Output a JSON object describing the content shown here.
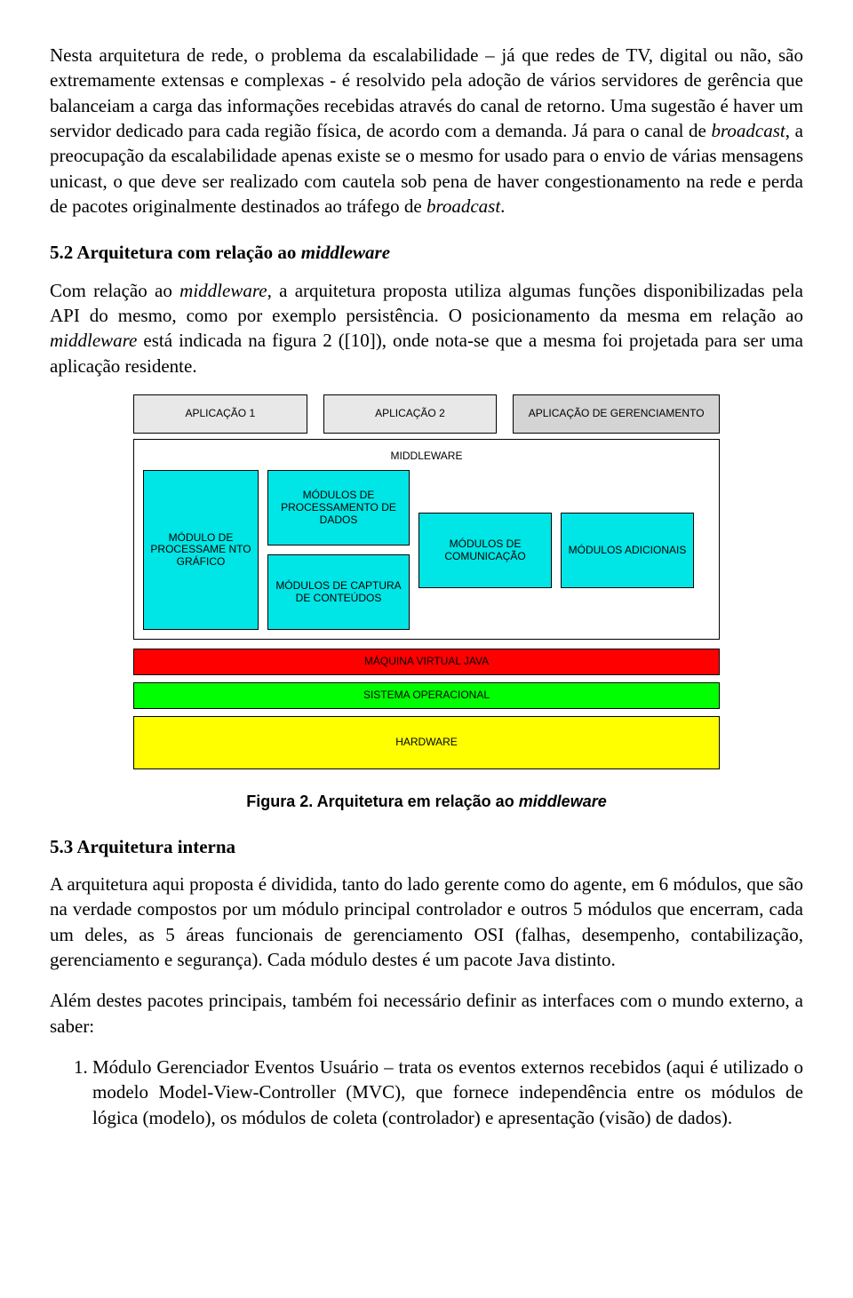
{
  "para1_a": "Nesta arquitetura de rede, o problema da escalabilidade – já que redes de TV, digital ou não, são extremamente extensas e complexas - é resolvido pela adoção de vários servidores de gerência que balanceiam a carga das informações recebidas através do canal de retorno. Uma sugestão é haver um servidor dedicado para cada região física, de acordo com a demanda. Já para o canal de ",
  "para1_b": "broadcast",
  "para1_c": ", a preocupação da escalabilidade apenas existe se o mesmo for usado para o envio de várias mensagens unicast, o que deve ser realizado com cautela sob pena de haver congestionamento na rede e perda de pacotes originalmente destinados ao tráfego de ",
  "para1_d": "broadcast",
  "para1_e": ".",
  "h52_a": "5.2 Arquitetura com relação ao ",
  "h52_b": "middleware",
  "para2_a": "Com relação ao ",
  "para2_b": "middleware",
  "para2_c": ", a arquitetura proposta utiliza algumas funções disponibilizadas pela API do mesmo, como por exemplo persistência. O posicionamento da mesma em relação ao ",
  "para2_d": "middleware",
  "para2_e": " está indicada na figura 2 ([10]), onde nota-se que a mesma foi projetada para ser uma aplicação residente.",
  "diagram": {
    "app1": "APLICAÇÃO 1",
    "app2": "APLICAÇÃO 2",
    "app3": "APLICAÇÃO DE GERENCIAMENTO",
    "mw_title": "MIDDLEWARE",
    "mod_graf": "MÓDULO DE PROCESSAME NTO GRÁFICO",
    "mod_dados": "MÓDULOS DE PROCESSAMENTO DE DADOS",
    "mod_capt": "MÓDULOS DE CAPTURA DE CONTEÚDOS",
    "mod_com": "MÓDULOS DE COMUNICAÇÃO",
    "mod_add": "MÓDULOS ADICIONAIS",
    "jvm": "MÁQUINA VIRTUAL JAVA",
    "so": "SISTEMA OPERACIONAL",
    "hw": "HARDWARE",
    "colors": {
      "module": "#00e5e5",
      "jvm": "#ff0000",
      "so": "#00ff00",
      "hw": "#ffff00",
      "app_light": "#e8e8e8",
      "app_dark": "#d4d4d4"
    }
  },
  "caption_a": "Figura 2. Arquitetura em relação ao ",
  "caption_b": "middleware",
  "h53": "5.3 Arquitetura interna",
  "para3": "A arquitetura aqui proposta é dividida, tanto do lado gerente como do agente, em 6 módulos, que são na verdade compostos por um módulo principal controlador e outros 5 módulos que encerram, cada um deles, as 5 áreas funcionais de gerenciamento OSI (falhas, desempenho, contabilização, gerenciamento e segurança). Cada módulo destes é um pacote Java distinto.",
  "para4": "Além destes pacotes principais, também foi necessário definir as interfaces com o mundo externo, a saber:",
  "li1": "Módulo Gerenciador Eventos Usuário – trata os eventos externos recebidos (aqui é utilizado o modelo Model-View-Controller (MVC), que fornece independência entre os módulos de lógica (modelo), os módulos de coleta (controlador) e apresentação (visão) de dados)."
}
